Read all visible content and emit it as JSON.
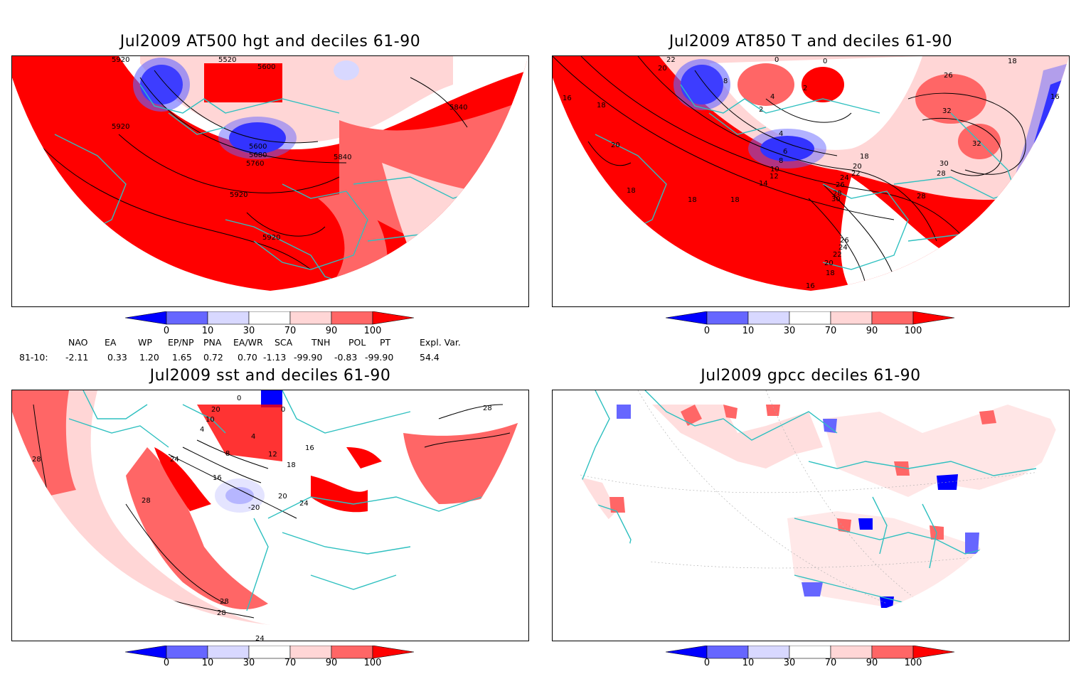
{
  "panels": [
    {
      "id": "at500",
      "title": "Jul2009 AT500 hgt and deciles 61-90",
      "contour_labels": [
        "5920",
        "5520",
        "5600",
        "5840",
        "5920",
        "5600",
        "5680",
        "5760",
        "5840",
        "5920",
        "5920"
      ]
    },
    {
      "id": "at850",
      "title": "Jul2009 AT850 T and deciles 61-90",
      "contour_labels": [
        "22",
        "20",
        "16",
        "18",
        "20",
        "18",
        "18",
        "18",
        "8",
        "4",
        "2",
        "0",
        "0",
        "2",
        "4",
        "6",
        "8",
        "10",
        "12",
        "14",
        "18",
        "20",
        "22",
        "24",
        "26",
        "28",
        "30",
        "26",
        "32",
        "32",
        "30",
        "28",
        "28",
        "26",
        "24",
        "22",
        "20",
        "18",
        "16",
        "18",
        "16"
      ]
    },
    {
      "id": "sst",
      "title": "Jul2009 sst and deciles 61-90",
      "contour_labels": [
        "28",
        "0",
        "20",
        "10",
        "4",
        "0",
        "4",
        "8",
        "12",
        "16",
        "24",
        "16",
        "28",
        "-20",
        "20",
        "24",
        "28",
        "28",
        "24",
        "28",
        "18"
      ]
    },
    {
      "id": "gpcc",
      "title": "Jul2009 gpcc deciles 61-90",
      "contour_labels": []
    }
  ],
  "colorbar": {
    "ticks": [
      "0",
      "10",
      "30",
      "70",
      "90",
      "100"
    ],
    "colors": [
      "#0000ff",
      "#6666ff",
      "#d8d8ff",
      "#ffffff",
      "#ffd6d6",
      "#ff6666",
      "#ff0000"
    ]
  },
  "indices": {
    "headers": [
      "NAO",
      "EA",
      "WP",
      "EP/NP",
      "PNA",
      "EA/WR",
      "SCA",
      "TNH",
      "POL",
      "PT",
      "Expl. Var."
    ],
    "row_label": "81-10:",
    "values": [
      "-2.11",
      "0.33",
      "1.20",
      "1.65",
      "0.72",
      "0.70",
      "-1.13",
      "-99.90",
      "-0.83",
      "-99.90",
      "54.4"
    ]
  },
  "colors": {
    "land_outline": "#2fc0c0",
    "positive_strong": "#ff0000",
    "positive_mid": "#ff6666",
    "positive_light": "#ffd6d6",
    "negative_light": "#d8d8ff",
    "negative_mid": "#6666ff",
    "negative_strong": "#0000ff"
  }
}
